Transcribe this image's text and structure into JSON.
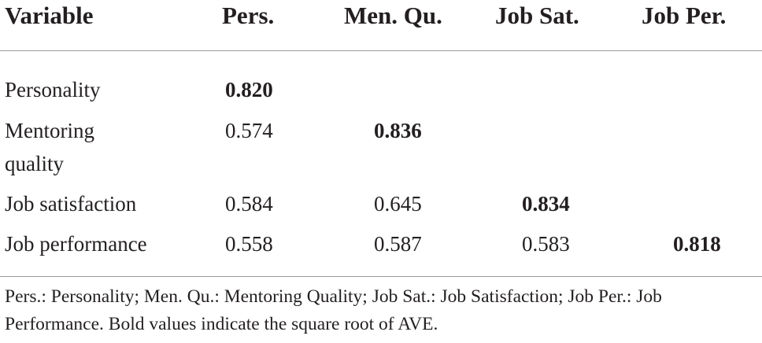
{
  "table": {
    "headers": [
      "Variable",
      "Pers.",
      "Men. Qu.",
      "Job Sat.",
      "Job Per."
    ],
    "rows": [
      {
        "variable": "Personality",
        "cells": [
          "0.820",
          "",
          "",
          ""
        ],
        "bold_index": 0
      },
      {
        "variable": "Mentoring quality",
        "cells": [
          "0.574",
          "0.836",
          "",
          ""
        ],
        "bold_index": 1
      },
      {
        "variable": "Job satisfaction",
        "cells": [
          "0.584",
          "0.645",
          "0.834",
          ""
        ],
        "bold_index": 2
      },
      {
        "variable": "Job performance",
        "cells": [
          "0.558",
          "0.587",
          "0.583",
          "0.818"
        ],
        "bold_index": 3
      }
    ]
  },
  "footnote": "Pers.: Personality; Men. Qu.: Mentoring Quality; Job Sat.: Job Satisfaction; Job Per.: Job Performance. Bold values indicate the square root of AVE."
}
